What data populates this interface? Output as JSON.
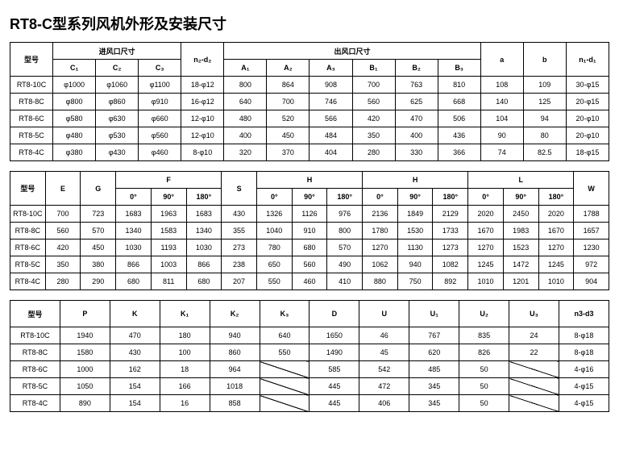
{
  "title": "RT8-C型系列风机外形及安装尺寸",
  "t1": {
    "h": {
      "model": "型号",
      "inlet": "进风口尺寸",
      "c1": "C₁",
      "c2": "C₂",
      "c3": "C₃",
      "n2d2": "n₂-d₂",
      "outlet": "出风口尺寸",
      "a1": "A₁",
      "a2": "A₂",
      "a3": "A₃",
      "b1": "B₁",
      "b2": "B₂",
      "b3": "B₃",
      "a": "a",
      "b": "b",
      "n1d1": "n₁-d₁"
    },
    "rows": [
      {
        "m": "RT8-10C",
        "c1": "φ1000",
        "c2": "φ1060",
        "c3": "φ1100",
        "n2": "18-φ12",
        "a1": "800",
        "a2": "864",
        "a3": "908",
        "b1": "700",
        "b2": "763",
        "b3": "810",
        "a": "108",
        "b": "109",
        "n1": "30-φ15"
      },
      {
        "m": "RT8-8C",
        "c1": "φ800",
        "c2": "φ860",
        "c3": "φ910",
        "n2": "16-φ12",
        "a1": "640",
        "a2": "700",
        "a3": "746",
        "b1": "560",
        "b2": "625",
        "b3": "668",
        "a": "140",
        "b": "125",
        "n1": "20-φ15"
      },
      {
        "m": "RT8-6C",
        "c1": "φ580",
        "c2": "φ630",
        "c3": "φ660",
        "n2": "12-φ10",
        "a1": "480",
        "a2": "520",
        "a3": "566",
        "b1": "420",
        "b2": "470",
        "b3": "506",
        "a": "104",
        "b": "94",
        "n1": "20-φ10"
      },
      {
        "m": "RT8-5C",
        "c1": "φ480",
        "c2": "φ530",
        "c3": "φ560",
        "n2": "12-φ10",
        "a1": "400",
        "a2": "450",
        "a3": "484",
        "b1": "350",
        "b2": "400",
        "b3": "436",
        "a": "90",
        "b": "80",
        "n1": "20-φ10"
      },
      {
        "m": "RT8-4C",
        "c1": "φ380",
        "c2": "φ430",
        "c3": "φ460",
        "n2": "8-φ10",
        "a1": "320",
        "a2": "370",
        "a3": "404",
        "b1": "280",
        "b2": "330",
        "b3": "366",
        "a": "74",
        "b": "82.5",
        "n1": "18-φ15"
      }
    ]
  },
  "t2": {
    "h": {
      "model": "型号",
      "e": "E",
      "g": "G",
      "f": "F",
      "s": "S",
      "hh": "H",
      "l": "L",
      "w": "W",
      "d0": "0°",
      "d90": "90°",
      "d180": "180°"
    },
    "rows": [
      {
        "m": "RT8-10C",
        "e": "700",
        "g": "723",
        "f0": "1683",
        "f90": "1963",
        "f180": "1683",
        "s": "430",
        "h10": "1326",
        "h190": "1126",
        "h1180": "976",
        "h20": "2136",
        "h290": "1849",
        "h2180": "2129",
        "l0": "2020",
        "l90": "2450",
        "l180": "2020",
        "w": "1788"
      },
      {
        "m": "RT8-8C",
        "e": "560",
        "g": "570",
        "f0": "1340",
        "f90": "1583",
        "f180": "1340",
        "s": "355",
        "h10": "1040",
        "h190": "910",
        "h1180": "800",
        "h20": "1780",
        "h290": "1530",
        "h2180": "1733",
        "l0": "1670",
        "l90": "1983",
        "l180": "1670",
        "w": "1657"
      },
      {
        "m": "RT8-6C",
        "e": "420",
        "g": "450",
        "f0": "1030",
        "f90": "1193",
        "f180": "1030",
        "s": "273",
        "h10": "780",
        "h190": "680",
        "h1180": "570",
        "h20": "1270",
        "h290": "1130",
        "h2180": "1273",
        "l0": "1270",
        "l90": "1523",
        "l180": "1270",
        "w": "1230"
      },
      {
        "m": "RT8-5C",
        "e": "350",
        "g": "380",
        "f0": "866",
        "f90": "1003",
        "f180": "866",
        "s": "238",
        "h10": "650",
        "h190": "560",
        "h1180": "490",
        "h20": "1062",
        "h290": "940",
        "h2180": "1082",
        "l0": "1245",
        "l90": "1472",
        "l180": "1245",
        "w": "972"
      },
      {
        "m": "RT8-4C",
        "e": "280",
        "g": "290",
        "f0": "680",
        "f90": "811",
        "f180": "680",
        "s": "207",
        "h10": "550",
        "h190": "460",
        "h1180": "410",
        "h20": "880",
        "h290": "750",
        "h2180": "892",
        "l0": "1010",
        "l90": "1201",
        "l180": "1010",
        "w": "904"
      }
    ]
  },
  "t3": {
    "h": {
      "model": "型号",
      "p": "P",
      "k": "K",
      "k1": "K₁",
      "k2": "K₂",
      "k3": "K₃",
      "d": "D",
      "u": "U",
      "u1": "U₁",
      "u2": "U₂",
      "u3": "U₃",
      "n3d3": "n3-d3"
    },
    "rows": [
      {
        "m": "RT8-10C",
        "p": "1940",
        "k": "470",
        "k1": "180",
        "k2": "940",
        "k3": "640",
        "d": "1650",
        "u": "46",
        "u1": "767",
        "u2": "835",
        "u3": "24",
        "n3": "8-φ18"
      },
      {
        "m": "RT8-8C",
        "p": "1580",
        "k": "430",
        "k1": "100",
        "k2": "860",
        "k3": "550",
        "d": "1490",
        "u": "45",
        "u1": "620",
        "u2": "826",
        "u3": "22",
        "n3": "8-φ18"
      },
      {
        "m": "RT8-6C",
        "p": "1000",
        "k": "162",
        "k1": "18",
        "k2": "964",
        "k3": "",
        "d": "585",
        "u": "542",
        "u1": "485",
        "u2": "50",
        "u3": "",
        "n3": "4-φ16"
      },
      {
        "m": "RT8-5C",
        "p": "1050",
        "k": "154",
        "k1": "166",
        "k2": "1018",
        "k3": "",
        "d": "445",
        "u": "472",
        "u1": "345",
        "u2": "50",
        "u3": "",
        "n3": "4-φ15"
      },
      {
        "m": "RT8-4C",
        "p": "890",
        "k": "154",
        "k1": "16",
        "k2": "858",
        "k3": "",
        "d": "445",
        "u": "406",
        "u1": "345",
        "u2": "50",
        "u3": "",
        "n3": "4-φ15"
      }
    ]
  }
}
